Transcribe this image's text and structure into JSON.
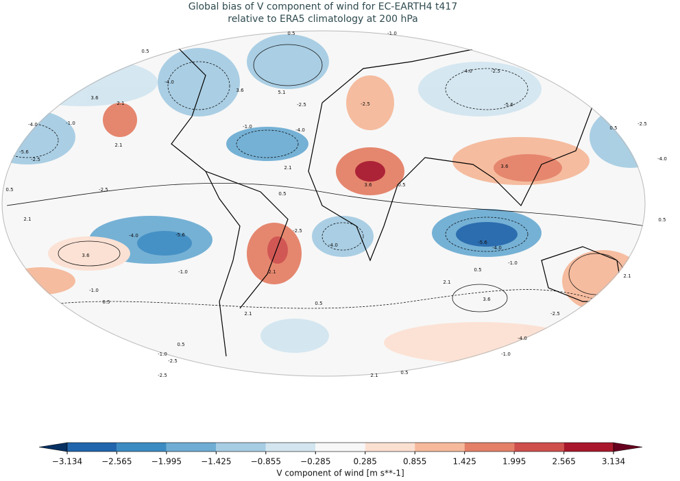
{
  "title_lines": [
    "Global bias of V component of wind for EC-EARTH4 t417",
    "relative to ERA5 climatology at 200 hPa"
  ],
  "contour_labels": [
    "0.5",
    "-1.0",
    "0.5",
    "-4.0",
    "3.6",
    "2.1",
    "3.6",
    "5.1",
    "-2.5",
    "-1.0",
    "-4.0",
    "-2.5",
    "-4.0",
    "-2.5",
    "-5.6",
    "-1.0",
    "-4.0",
    "-5.6",
    "-2.5",
    "2.1",
    "2.1",
    "3.6",
    "0.5",
    "3.6",
    "0.5",
    "-2.5",
    "0.5",
    "2.1",
    "-4.0",
    "-5.6",
    "3.6",
    "-1.0",
    "2.1",
    "-4.0",
    "-2.5",
    "-5.6",
    "-4.0",
    "-1.0",
    "0.5",
    "2.1",
    "3.6",
    "2.1",
    "-1.0",
    "0.5",
    "0.5",
    "2.1",
    "-2.5",
    "-4.0",
    "0.5",
    "-1.0",
    "-2.5",
    "-1.0",
    "2.1",
    "0.5",
    "-2.5",
    "0.5",
    "-4.0",
    "-2.5",
    "0.5"
  ],
  "colorbar": {
    "label": "V component of wind [m s**-1]",
    "ticks": [
      {
        "value": -3.134,
        "label": "−3.134"
      },
      {
        "value": -2.565,
        "label": "−2.565"
      },
      {
        "value": -1.995,
        "label": "−1.995"
      },
      {
        "value": -1.425,
        "label": "−1.425"
      },
      {
        "value": -0.855,
        "label": "−0.855"
      },
      {
        "value": -0.285,
        "label": "−0.285"
      },
      0.285,
      0.855,
      1.425,
      1.995,
      2.565,
      3.134
    ],
    "colors": [
      "#2166ac",
      "#3c8bc2",
      "#6fadd4",
      "#a6cde3",
      "#d3e6f0",
      "#f7f7f7",
      "#fbe0d2",
      "#f6b99b",
      "#e58068",
      "#cf4f4c",
      "#a8172c"
    ],
    "extend_colors": [
      "#053061",
      "#67001f"
    ]
  }
}
